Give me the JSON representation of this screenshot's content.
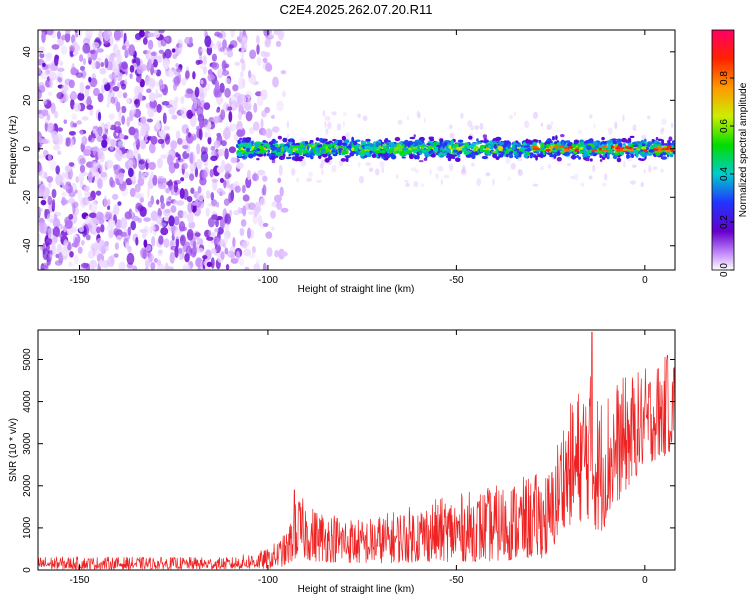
{
  "figure": {
    "title": "C2E4.2025.262.07.20.R11"
  },
  "chart_data": [
    {
      "type": "heatmap",
      "xlabel": "Height of straight line (km)",
      "ylabel": "Frequency (Hz)",
      "xlim": [
        -161,
        8
      ],
      "ylim": [
        -50,
        49
      ],
      "xticks": [
        "-150",
        "-100",
        "-50",
        "0"
      ],
      "yticks": [
        "40",
        "20",
        "0",
        "-20",
        "-40"
      ],
      "colorbar": {
        "label": "Normalized spectral amplitude",
        "range": [
          0,
          1
        ],
        "ticks": [
          "0.0",
          "0.2",
          "0.4",
          "0.6",
          "0.8"
        ],
        "colormap": [
          "#ffffff",
          "#cc99ff",
          "#6600cc",
          "#2233ff",
          "#00cccc",
          "#00dd00",
          "#ccee00",
          "#ff9900",
          "#ff2200",
          "#ff0066"
        ]
      },
      "signal_band": {
        "x_start": -108,
        "x_end": 8,
        "frequency_center": 0,
        "amplitude": 0.45
      },
      "noise_region": {
        "x_start": -161,
        "x_end": -95,
        "amplitude": 0.3
      },
      "grid": false
    },
    {
      "type": "line",
      "xlabel": "Height of straight line (km)",
      "ylabel": "SNR (10 * v/v)",
      "xlim": [
        -161,
        8
      ],
      "ylim": [
        0,
        5700
      ],
      "xticks": [
        "-150",
        "-100",
        "-50",
        "0"
      ],
      "yticks": [
        "0",
        "1000",
        "2000",
        "3000",
        "4000",
        "5000"
      ],
      "series": [
        {
          "color": "#ee2222",
          "envelope": [
            {
              "x": -161,
              "lo": 20,
              "hi": 320
            },
            {
              "x": -110,
              "lo": 20,
              "hi": 300
            },
            {
              "x": -100,
              "lo": 30,
              "hi": 500
            },
            {
              "x": -95,
              "lo": 100,
              "hi": 900
            },
            {
              "x": -92,
              "lo": 300,
              "hi": 1800
            },
            {
              "x": -88,
              "lo": 200,
              "hi": 1500
            },
            {
              "x": -75,
              "lo": 150,
              "hi": 1200
            },
            {
              "x": -55,
              "lo": 200,
              "hi": 1700
            },
            {
              "x": -40,
              "lo": 200,
              "hi": 2000
            },
            {
              "x": -25,
              "lo": 300,
              "hi": 2400
            },
            {
              "x": -22,
              "lo": 1000,
              "hi": 3600
            },
            {
              "x": -15,
              "lo": 1200,
              "hi": 4800
            },
            {
              "x": -12,
              "lo": 800,
              "hi": 4200
            },
            {
              "x": -8,
              "lo": 1500,
              "hi": 4500
            },
            {
              "x": 0,
              "lo": 2500,
              "hi": 4800
            },
            {
              "x": 8,
              "lo": 2800,
              "hi": 5200
            }
          ],
          "peaks": [
            {
              "x": -93,
              "y": 1900
            },
            {
              "x": -14,
              "y": 5650
            },
            {
              "x": 6,
              "y": 5100
            }
          ]
        }
      ],
      "grid": false
    }
  ]
}
